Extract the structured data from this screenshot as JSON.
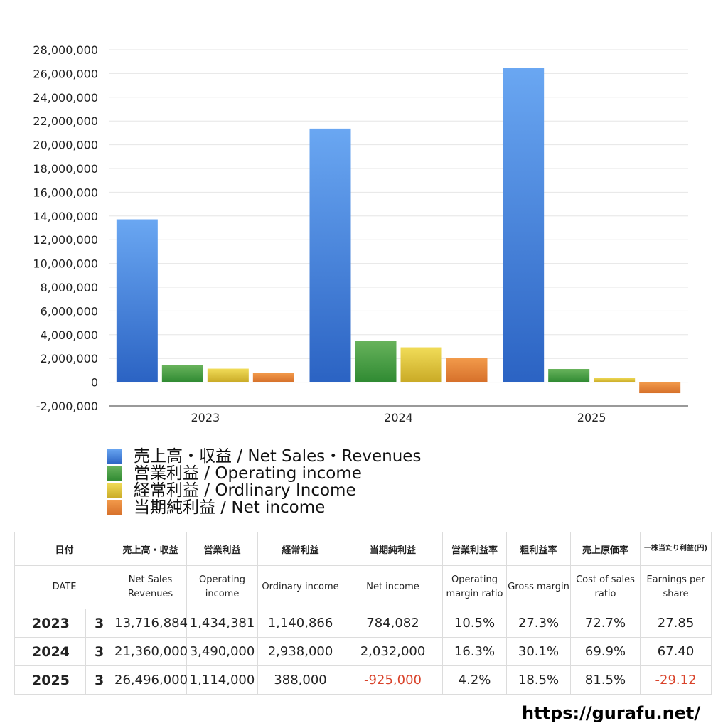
{
  "chart_data": {
    "type": "bar",
    "categories": [
      "2023",
      "2024",
      "2025"
    ],
    "ylim": [
      -2000000,
      28000000
    ],
    "yticks": [
      "28,000,000",
      "26,000,000",
      "24,000,000",
      "22,000,000",
      "20,000,000",
      "18,000,000",
      "16,000,000",
      "14,000,000",
      "12,000,000",
      "10,000,000",
      "8,000,000",
      "6,000,000",
      "4,000,000",
      "2,000,000",
      "0",
      "-2,000,000"
    ],
    "series": [
      {
        "name": "売上高・収益 / Net Sales・Revenues",
        "values": [
          13716884,
          21360000,
          26496000
        ],
        "color_top": "#6aa7f2",
        "color_bottom": "#2b63c3"
      },
      {
        "name": "営業利益 / Operating income",
        "values": [
          1434381,
          3490000,
          1114000
        ],
        "color_top": "#68b35c",
        "color_bottom": "#2f8a32"
      },
      {
        "name": "経常利益 / Ordlinary Income",
        "values": [
          1140866,
          2938000,
          388000
        ],
        "color_top": "#f1dc58",
        "color_bottom": "#c9aa26"
      },
      {
        "name": "当期純利益 / Net income",
        "values": [
          784082,
          2032000,
          -925000
        ],
        "color_top": "#f29a4b",
        "color_bottom": "#d6702a"
      }
    ]
  },
  "table": {
    "header_jp": [
      "日付",
      "売上高・収益",
      "営業利益",
      "経常利益",
      "当期純利益",
      "営業利益率",
      "粗利益率",
      "売上原価率",
      "一株当たり利益(円)"
    ],
    "header_en": [
      "DATE",
      "Net Sales Revenues",
      "Operating income",
      "Ordinary income",
      "Net income",
      "Operating margin ratio",
      "Gross margin",
      "Cost of sales ratio",
      "Earnings per share"
    ],
    "rows": [
      {
        "year": "2023",
        "month": "3",
        "sales": "13,716,884",
        "op": "1,434,381",
        "ord": "1,140,866",
        "net": "784,082",
        "opm": "10.5%",
        "gm": "27.3%",
        "cos": "72.7%",
        "eps": "27.85"
      },
      {
        "year": "2024",
        "month": "3",
        "sales": "21,360,000",
        "op": "3,490,000",
        "ord": "2,938,000",
        "net": "2,032,000",
        "opm": "16.3%",
        "gm": "30.1%",
        "cos": "69.9%",
        "eps": "67.40"
      },
      {
        "year": "2025",
        "month": "3",
        "sales": "26,496,000",
        "op": "1,114,000",
        "ord": "388,000",
        "net": "-925,000",
        "opm": "4.2%",
        "gm": "18.5%",
        "cos": "81.5%",
        "eps": "-29.12"
      }
    ]
  },
  "site_url": "https://gurafu.net/"
}
